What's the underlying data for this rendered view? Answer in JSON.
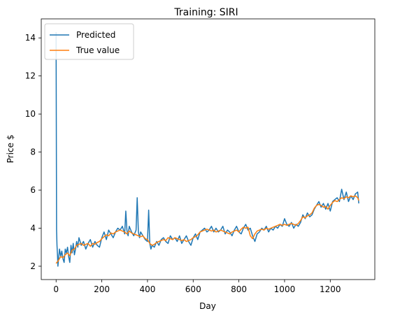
{
  "chart_data": {
    "type": "line",
    "title": "Training: SIRI",
    "xlabel": "Day",
    "ylabel": "Price $",
    "xlim": [
      -65,
      1395
    ],
    "ylim": [
      1.3,
      15.0
    ],
    "xticks": [
      0,
      200,
      400,
      600,
      800,
      1000,
      1200
    ],
    "yticks": [
      2,
      4,
      6,
      8,
      10,
      12,
      14
    ],
    "grid": false,
    "legend_position": "top-left",
    "series": [
      {
        "name": "Predicted",
        "color": "#1f77b4",
        "x": [
          0,
          2,
          4,
          6,
          8,
          10,
          15,
          20,
          25,
          30,
          35,
          40,
          45,
          50,
          55,
          60,
          65,
          70,
          75,
          80,
          85,
          90,
          95,
          100,
          110,
          120,
          130,
          140,
          150,
          160,
          170,
          180,
          190,
          200,
          210,
          220,
          230,
          240,
          250,
          260,
          270,
          280,
          290,
          300,
          305,
          310,
          315,
          320,
          330,
          340,
          350,
          355,
          360,
          365,
          370,
          380,
          390,
          400,
          405,
          410,
          415,
          420,
          430,
          440,
          450,
          460,
          470,
          480,
          490,
          500,
          510,
          520,
          530,
          540,
          550,
          560,
          570,
          580,
          590,
          600,
          610,
          620,
          630,
          640,
          650,
          660,
          670,
          680,
          690,
          700,
          710,
          720,
          730,
          740,
          750,
          760,
          770,
          780,
          790,
          800,
          810,
          820,
          830,
          840,
          850,
          860,
          870,
          880,
          890,
          900,
          910,
          920,
          930,
          940,
          950,
          960,
          970,
          980,
          990,
          1000,
          1010,
          1020,
          1030,
          1040,
          1050,
          1060,
          1070,
          1080,
          1090,
          1100,
          1110,
          1120,
          1130,
          1140,
          1150,
          1160,
          1170,
          1180,
          1190,
          1200,
          1210,
          1220,
          1230,
          1240,
          1250,
          1260,
          1270,
          1280,
          1290,
          1300,
          1310,
          1320,
          1325
        ],
        "values": [
          14.3,
          3.9,
          3.1,
          2.6,
          2.0,
          2.3,
          2.9,
          2.5,
          2.8,
          2.4,
          2.2,
          2.9,
          2.7,
          3.0,
          2.5,
          2.2,
          3.1,
          2.7,
          3.2,
          2.6,
          2.9,
          3.3,
          3.0,
          3.5,
          3.1,
          3.3,
          2.9,
          3.2,
          3.4,
          3.0,
          3.3,
          3.1,
          3.0,
          3.5,
          3.8,
          3.4,
          3.9,
          3.7,
          3.5,
          3.8,
          4.0,
          3.9,
          4.1,
          3.7,
          4.9,
          3.9,
          3.6,
          4.1,
          3.8,
          3.6,
          3.9,
          5.6,
          3.8,
          3.5,
          3.8,
          3.6,
          3.4,
          3.3,
          4.95,
          3.2,
          2.9,
          3.1,
          3.0,
          3.3,
          3.1,
          3.4,
          3.5,
          3.3,
          3.2,
          3.6,
          3.4,
          3.5,
          3.3,
          3.6,
          3.2,
          3.4,
          3.6,
          3.3,
          3.1,
          3.5,
          3.7,
          3.4,
          3.8,
          3.9,
          4.0,
          3.8,
          3.9,
          4.1,
          3.8,
          4.0,
          3.8,
          3.9,
          4.1,
          3.7,
          3.9,
          3.8,
          3.6,
          3.9,
          4.1,
          3.8,
          3.7,
          4.0,
          4.2,
          3.9,
          4.0,
          3.6,
          3.3,
          3.7,
          3.8,
          4.0,
          3.9,
          4.1,
          3.8,
          4.0,
          3.9,
          4.1,
          4.0,
          4.2,
          4.1,
          4.5,
          4.2,
          4.1,
          4.3,
          4.0,
          4.2,
          4.1,
          4.3,
          4.7,
          4.5,
          4.8,
          4.6,
          4.7,
          5.0,
          5.2,
          5.4,
          5.1,
          5.3,
          5.0,
          5.3,
          4.9,
          5.4,
          5.5,
          5.6,
          5.4,
          6.05,
          5.5,
          5.9,
          5.4,
          5.7,
          5.5,
          5.8,
          5.9,
          5.3
        ]
      },
      {
        "name": "True value",
        "color": "#ff7f0e",
        "x": [
          0,
          10,
          20,
          30,
          40,
          50,
          60,
          70,
          80,
          90,
          100,
          110,
          120,
          130,
          140,
          150,
          160,
          170,
          180,
          190,
          200,
          210,
          220,
          230,
          240,
          250,
          260,
          270,
          280,
          290,
          300,
          310,
          320,
          330,
          340,
          350,
          360,
          370,
          380,
          390,
          400,
          410,
          420,
          430,
          440,
          450,
          460,
          470,
          480,
          490,
          500,
          510,
          520,
          530,
          540,
          550,
          560,
          570,
          580,
          590,
          600,
          610,
          620,
          630,
          640,
          650,
          660,
          670,
          680,
          690,
          700,
          710,
          720,
          730,
          740,
          750,
          760,
          770,
          780,
          790,
          800,
          810,
          820,
          830,
          840,
          850,
          860,
          870,
          880,
          890,
          900,
          910,
          920,
          930,
          940,
          950,
          960,
          970,
          980,
          990,
          1000,
          1010,
          1020,
          1030,
          1040,
          1050,
          1060,
          1070,
          1080,
          1090,
          1100,
          1110,
          1120,
          1130,
          1140,
          1150,
          1160,
          1170,
          1180,
          1190,
          1200,
          1210,
          1220,
          1230,
          1240,
          1250,
          1260,
          1270,
          1280,
          1290,
          1300,
          1310,
          1320,
          1325
        ],
        "values": [
          2.15,
          2.3,
          2.5,
          2.45,
          2.6,
          2.7,
          2.55,
          2.85,
          2.9,
          3.1,
          3.15,
          3.2,
          3.1,
          3.15,
          3.2,
          3.05,
          3.2,
          3.15,
          3.25,
          3.3,
          3.45,
          3.55,
          3.65,
          3.6,
          3.75,
          3.7,
          3.8,
          3.85,
          3.9,
          3.85,
          3.8,
          3.7,
          3.85,
          3.75,
          3.7,
          3.65,
          3.6,
          3.55,
          3.6,
          3.45,
          3.4,
          3.2,
          3.1,
          3.15,
          3.25,
          3.3,
          3.35,
          3.4,
          3.35,
          3.5,
          3.45,
          3.4,
          3.5,
          3.45,
          3.4,
          3.35,
          3.4,
          3.3,
          3.35,
          3.4,
          3.5,
          3.55,
          3.65,
          3.8,
          3.85,
          3.9,
          3.95,
          3.9,
          3.85,
          3.9,
          3.8,
          3.85,
          3.9,
          3.85,
          3.8,
          3.75,
          3.7,
          3.8,
          3.85,
          3.9,
          3.8,
          3.95,
          4.05,
          4.0,
          4.05,
          3.6,
          3.45,
          3.7,
          3.85,
          3.9,
          3.95,
          3.9,
          4.0,
          3.95,
          4.0,
          4.05,
          4.1,
          4.15,
          4.2,
          4.15,
          4.2,
          4.15,
          4.2,
          4.25,
          4.2,
          4.15,
          4.25,
          4.4,
          4.6,
          4.55,
          4.65,
          4.7,
          4.8,
          5.05,
          5.2,
          5.25,
          5.2,
          5.1,
          5.15,
          5.0,
          5.2,
          5.35,
          5.45,
          5.4,
          5.5,
          5.6,
          5.55,
          5.65,
          5.6,
          5.7,
          5.65,
          5.7,
          5.6,
          5.45
        ]
      }
    ]
  }
}
